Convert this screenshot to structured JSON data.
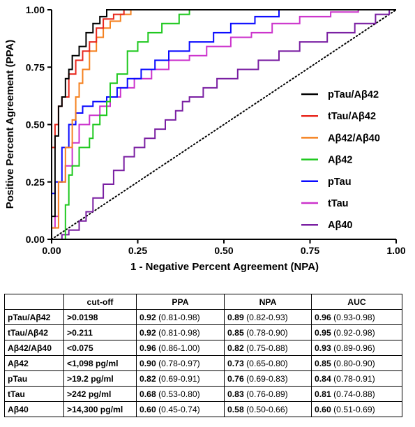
{
  "chart_data": {
    "type": "line",
    "xlabel": "1 - Negative  Percent  Agreement (NPA)",
    "ylabel": "Positive Percent Agreement (PPA)",
    "xlim": [
      0,
      1
    ],
    "ylim": [
      0,
      1
    ],
    "x_ticks": [
      "0.00",
      "0.25",
      "0.50",
      "0.75",
      "1.00"
    ],
    "y_ticks": [
      "0.00",
      "0.25",
      "0.50",
      "0.75",
      "1.00"
    ],
    "grid": false,
    "legend_position": "right",
    "reference_line": {
      "style": "dotted",
      "from": [
        0,
        0
      ],
      "to": [
        1,
        1
      ]
    },
    "series": [
      {
        "name": "pTau/Aβ42",
        "color": "#000000",
        "points": [
          [
            0,
            0
          ],
          [
            0,
            0.1
          ],
          [
            0.01,
            0.1
          ],
          [
            0.01,
            0.45
          ],
          [
            0.02,
            0.45
          ],
          [
            0.02,
            0.58
          ],
          [
            0.03,
            0.58
          ],
          [
            0.03,
            0.62
          ],
          [
            0.04,
            0.62
          ],
          [
            0.04,
            0.7
          ],
          [
            0.05,
            0.7
          ],
          [
            0.05,
            0.74
          ],
          [
            0.06,
            0.74
          ],
          [
            0.06,
            0.8
          ],
          [
            0.08,
            0.8
          ],
          [
            0.08,
            0.84
          ],
          [
            0.1,
            0.84
          ],
          [
            0.1,
            0.9
          ],
          [
            0.12,
            0.9
          ],
          [
            0.12,
            0.94
          ],
          [
            0.14,
            0.94
          ],
          [
            0.14,
            0.97
          ],
          [
            0.16,
            0.97
          ],
          [
            0.16,
            1.0
          ],
          [
            1,
            1
          ]
        ]
      },
      {
        "name": "tTau/Aβ42",
        "color": "#e8281e",
        "points": [
          [
            0,
            0
          ],
          [
            0,
            0.4
          ],
          [
            0.01,
            0.4
          ],
          [
            0.01,
            0.5
          ],
          [
            0.02,
            0.5
          ],
          [
            0.02,
            0.58
          ],
          [
            0.03,
            0.58
          ],
          [
            0.03,
            0.62
          ],
          [
            0.05,
            0.62
          ],
          [
            0.05,
            0.72
          ],
          [
            0.07,
            0.72
          ],
          [
            0.07,
            0.78
          ],
          [
            0.09,
            0.78
          ],
          [
            0.09,
            0.82
          ],
          [
            0.11,
            0.82
          ],
          [
            0.11,
            0.86
          ],
          [
            0.13,
            0.86
          ],
          [
            0.13,
            0.92
          ],
          [
            0.15,
            0.92
          ],
          [
            0.15,
            0.96
          ],
          [
            0.18,
            0.96
          ],
          [
            0.18,
            0.98
          ],
          [
            0.21,
            0.98
          ],
          [
            0.21,
            1.0
          ],
          [
            1,
            1
          ]
        ]
      },
      {
        "name": "Aβ42/Aβ40",
        "color": "#f58220",
        "points": [
          [
            0,
            0
          ],
          [
            0,
            0.05
          ],
          [
            0.02,
            0.05
          ],
          [
            0.02,
            0.25
          ],
          [
            0.04,
            0.25
          ],
          [
            0.04,
            0.4
          ],
          [
            0.06,
            0.4
          ],
          [
            0.06,
            0.52
          ],
          [
            0.07,
            0.52
          ],
          [
            0.07,
            0.62
          ],
          [
            0.08,
            0.62
          ],
          [
            0.08,
            0.68
          ],
          [
            0.09,
            0.68
          ],
          [
            0.09,
            0.74
          ],
          [
            0.11,
            0.74
          ],
          [
            0.11,
            0.82
          ],
          [
            0.13,
            0.82
          ],
          [
            0.13,
            0.88
          ],
          [
            0.15,
            0.88
          ],
          [
            0.15,
            0.92
          ],
          [
            0.17,
            0.92
          ],
          [
            0.17,
            0.95
          ],
          [
            0.2,
            0.95
          ],
          [
            0.2,
            0.98
          ],
          [
            0.23,
            0.98
          ],
          [
            0.23,
            1.0
          ],
          [
            0.36,
            1.0
          ],
          [
            1,
            1
          ]
        ]
      },
      {
        "name": "Aβ42",
        "color": "#1ec81e",
        "points": [
          [
            0,
            0
          ],
          [
            0.04,
            0
          ],
          [
            0.04,
            0.15
          ],
          [
            0.05,
            0.15
          ],
          [
            0.05,
            0.28
          ],
          [
            0.06,
            0.28
          ],
          [
            0.06,
            0.32
          ],
          [
            0.08,
            0.32
          ],
          [
            0.08,
            0.4
          ],
          [
            0.11,
            0.4
          ],
          [
            0.11,
            0.44
          ],
          [
            0.12,
            0.44
          ],
          [
            0.12,
            0.5
          ],
          [
            0.14,
            0.5
          ],
          [
            0.14,
            0.54
          ],
          [
            0.16,
            0.54
          ],
          [
            0.16,
            0.6
          ],
          [
            0.17,
            0.6
          ],
          [
            0.17,
            0.68
          ],
          [
            0.19,
            0.68
          ],
          [
            0.19,
            0.72
          ],
          [
            0.22,
            0.72
          ],
          [
            0.22,
            0.82
          ],
          [
            0.25,
            0.82
          ],
          [
            0.25,
            0.86
          ],
          [
            0.28,
            0.86
          ],
          [
            0.28,
            0.9
          ],
          [
            0.32,
            0.9
          ],
          [
            0.32,
            0.94
          ],
          [
            0.37,
            0.94
          ],
          [
            0.37,
            0.98
          ],
          [
            0.4,
            0.98
          ],
          [
            0.4,
            1.0
          ],
          [
            1,
            1
          ]
        ]
      },
      {
        "name": "pTau",
        "color": "#0a0aff",
        "points": [
          [
            0,
            0
          ],
          [
            0,
            0.2
          ],
          [
            0.01,
            0.2
          ],
          [
            0.01,
            0.25
          ],
          [
            0.03,
            0.25
          ],
          [
            0.03,
            0.4
          ],
          [
            0.05,
            0.4
          ],
          [
            0.05,
            0.5
          ],
          [
            0.07,
            0.5
          ],
          [
            0.07,
            0.55
          ],
          [
            0.09,
            0.55
          ],
          [
            0.09,
            0.58
          ],
          [
            0.12,
            0.58
          ],
          [
            0.12,
            0.6
          ],
          [
            0.16,
            0.6
          ],
          [
            0.16,
            0.62
          ],
          [
            0.19,
            0.62
          ],
          [
            0.19,
            0.66
          ],
          [
            0.22,
            0.66
          ],
          [
            0.22,
            0.7
          ],
          [
            0.26,
            0.7
          ],
          [
            0.26,
            0.74
          ],
          [
            0.3,
            0.74
          ],
          [
            0.3,
            0.78
          ],
          [
            0.34,
            0.78
          ],
          [
            0.34,
            0.82
          ],
          [
            0.4,
            0.82
          ],
          [
            0.4,
            0.86
          ],
          [
            0.47,
            0.86
          ],
          [
            0.47,
            0.9
          ],
          [
            0.52,
            0.9
          ],
          [
            0.52,
            0.94
          ],
          [
            0.59,
            0.94
          ],
          [
            0.59,
            0.97
          ],
          [
            0.66,
            0.97
          ],
          [
            0.66,
            1.0
          ],
          [
            1,
            1
          ]
        ]
      },
      {
        "name": "tTau",
        "color": "#cc33cc",
        "points": [
          [
            0,
            0
          ],
          [
            0,
            0.05
          ],
          [
            0.01,
            0.05
          ],
          [
            0.01,
            0.1
          ],
          [
            0.02,
            0.1
          ],
          [
            0.02,
            0.25
          ],
          [
            0.04,
            0.25
          ],
          [
            0.04,
            0.32
          ],
          [
            0.06,
            0.32
          ],
          [
            0.06,
            0.42
          ],
          [
            0.08,
            0.42
          ],
          [
            0.08,
            0.5
          ],
          [
            0.11,
            0.5
          ],
          [
            0.11,
            0.54
          ],
          [
            0.14,
            0.54
          ],
          [
            0.14,
            0.58
          ],
          [
            0.17,
            0.58
          ],
          [
            0.17,
            0.62
          ],
          [
            0.2,
            0.62
          ],
          [
            0.2,
            0.66
          ],
          [
            0.24,
            0.66
          ],
          [
            0.24,
            0.7
          ],
          [
            0.29,
            0.7
          ],
          [
            0.29,
            0.74
          ],
          [
            0.34,
            0.74
          ],
          [
            0.34,
            0.78
          ],
          [
            0.4,
            0.78
          ],
          [
            0.4,
            0.8
          ],
          [
            0.45,
            0.8
          ],
          [
            0.45,
            0.84
          ],
          [
            0.52,
            0.84
          ],
          [
            0.52,
            0.88
          ],
          [
            0.58,
            0.88
          ],
          [
            0.58,
            0.9
          ],
          [
            0.64,
            0.9
          ],
          [
            0.64,
            0.94
          ],
          [
            0.72,
            0.94
          ],
          [
            0.72,
            0.97
          ],
          [
            0.81,
            0.97
          ],
          [
            0.81,
            0.99
          ],
          [
            0.89,
            0.99
          ],
          [
            0.89,
            1.0
          ],
          [
            1,
            1
          ]
        ]
      },
      {
        "name": "Aβ40",
        "color": "#7a1fa2",
        "points": [
          [
            0,
            0
          ],
          [
            0.03,
            0
          ],
          [
            0.03,
            0.02
          ],
          [
            0.05,
            0.02
          ],
          [
            0.05,
            0.04
          ],
          [
            0.08,
            0.04
          ],
          [
            0.08,
            0.08
          ],
          [
            0.1,
            0.08
          ],
          [
            0.1,
            0.12
          ],
          [
            0.12,
            0.12
          ],
          [
            0.12,
            0.18
          ],
          [
            0.15,
            0.18
          ],
          [
            0.15,
            0.24
          ],
          [
            0.18,
            0.24
          ],
          [
            0.18,
            0.3
          ],
          [
            0.21,
            0.3
          ],
          [
            0.21,
            0.36
          ],
          [
            0.24,
            0.36
          ],
          [
            0.24,
            0.4
          ],
          [
            0.27,
            0.4
          ],
          [
            0.27,
            0.44
          ],
          [
            0.3,
            0.44
          ],
          [
            0.3,
            0.48
          ],
          [
            0.33,
            0.48
          ],
          [
            0.33,
            0.52
          ],
          [
            0.36,
            0.52
          ],
          [
            0.36,
            0.56
          ],
          [
            0.38,
            0.56
          ],
          [
            0.38,
            0.6
          ],
          [
            0.4,
            0.6
          ],
          [
            0.4,
            0.62
          ],
          [
            0.44,
            0.62
          ],
          [
            0.44,
            0.66
          ],
          [
            0.48,
            0.66
          ],
          [
            0.48,
            0.7
          ],
          [
            0.54,
            0.7
          ],
          [
            0.54,
            0.74
          ],
          [
            0.6,
            0.74
          ],
          [
            0.6,
            0.78
          ],
          [
            0.66,
            0.78
          ],
          [
            0.66,
            0.82
          ],
          [
            0.72,
            0.82
          ],
          [
            0.72,
            0.86
          ],
          [
            0.8,
            0.86
          ],
          [
            0.8,
            0.9
          ],
          [
            0.88,
            0.9
          ],
          [
            0.88,
            0.94
          ],
          [
            0.94,
            0.94
          ],
          [
            0.94,
            0.98
          ],
          [
            0.98,
            0.98
          ],
          [
            0.98,
            1.0
          ],
          [
            1,
            1
          ]
        ]
      }
    ]
  },
  "table": {
    "headers": [
      "",
      "cut-off",
      "PPA",
      "NPA",
      "AUC"
    ],
    "rows": [
      {
        "name": "pTau/Aβ42",
        "cutoff": ">0.0198",
        "ppa": "0.92",
        "ppa_ci": "(0.81-0.98)",
        "npa": "0.89",
        "npa_ci": "(0.82-0.93)",
        "auc": "0.96",
        "auc_ci": "(0.93-0.98)"
      },
      {
        "name": "tTau/Aβ42",
        "cutoff": ">0.211",
        "ppa": "0.92",
        "ppa_ci": "(0.81-0.98)",
        "npa": "0.85",
        "npa_ci": "(0.78-0.90)",
        "auc": "0.95",
        "auc_ci": "(0.92-0.98)"
      },
      {
        "name": "Aβ42/Aβ40",
        "cutoff": "<0.075",
        "ppa": "0.96",
        "ppa_ci": "(0.86-1.00)",
        "npa": "0.82",
        "npa_ci": "(0.75-0.88)",
        "auc": "0.93",
        "auc_ci": "(0.89-0.96)"
      },
      {
        "name": "Aβ42",
        "cutoff": "<1,098 pg/ml",
        "ppa": "0.90",
        "ppa_ci": "(0.78-0.97)",
        "npa": "0.73",
        "npa_ci": "(0.65-0.80)",
        "auc": "0.85",
        "auc_ci": "(0.80-0.90)"
      },
      {
        "name": "pTau",
        "cutoff": ">19.2 pg/ml",
        "ppa": "0.82",
        "ppa_ci": "(0.69-0.91)",
        "npa": "0.76",
        "npa_ci": "(0.69-0.83)",
        "auc": "0.84",
        "auc_ci": "(0.78-0.91)"
      },
      {
        "name": "tTau",
        "cutoff": ">242 pg/ml",
        "ppa": "0.68",
        "ppa_ci": "(0.53-0.80)",
        "npa": "0.83",
        "npa_ci": "(0.76-0.89)",
        "auc": "0.81",
        "auc_ci": "(0.74-0.88)"
      },
      {
        "name": "Aβ40",
        "cutoff": ">14,300 pg/ml",
        "ppa": "0.60",
        "ppa_ci": "(0.45-0.74)",
        "npa": "0.58",
        "npa_ci": "(0.50-0.66)",
        "auc": "0.60",
        "auc_ci": "(0.51-0.69)"
      }
    ]
  }
}
